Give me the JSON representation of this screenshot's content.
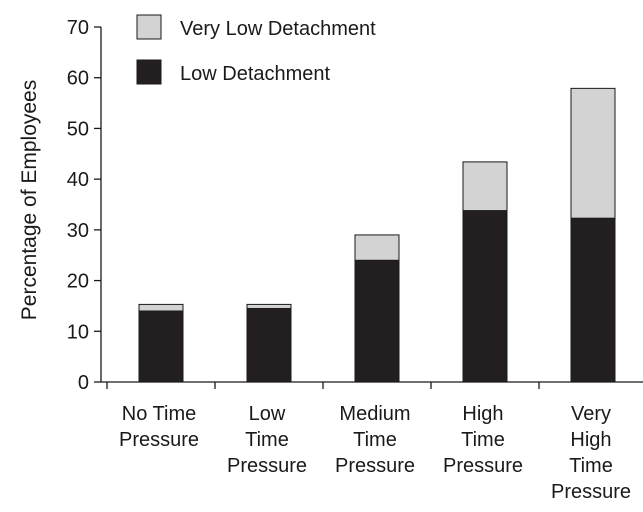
{
  "chart_data": {
    "type": "bar",
    "stacked": true,
    "ylabel": "Percentage of Employees",
    "ylim": [
      0,
      70
    ],
    "yticks": [
      0,
      10,
      20,
      30,
      40,
      50,
      60,
      70
    ],
    "categories": [
      [
        "No Time",
        "Pressure"
      ],
      [
        "Low",
        "Time",
        "Pressure"
      ],
      [
        "Medium",
        "Time",
        "Pressure"
      ],
      [
        "High",
        "Time",
        "Pressure"
      ],
      [
        "Very",
        "High",
        "Time",
        "Pressure"
      ]
    ],
    "series": [
      {
        "name": "Low Detachment",
        "color": "#231f20",
        "values": [
          14,
          14.5,
          24,
          33.8,
          32.3
        ]
      },
      {
        "name": "Very Low Detachment",
        "color": "#d3d3d3",
        "values": [
          1.3,
          0.8,
          5,
          9.6,
          25.6
        ]
      }
    ],
    "legend": {
      "position": "top-left",
      "order": [
        "Very Low Detachment",
        "Low Detachment"
      ]
    },
    "grid": false
  }
}
